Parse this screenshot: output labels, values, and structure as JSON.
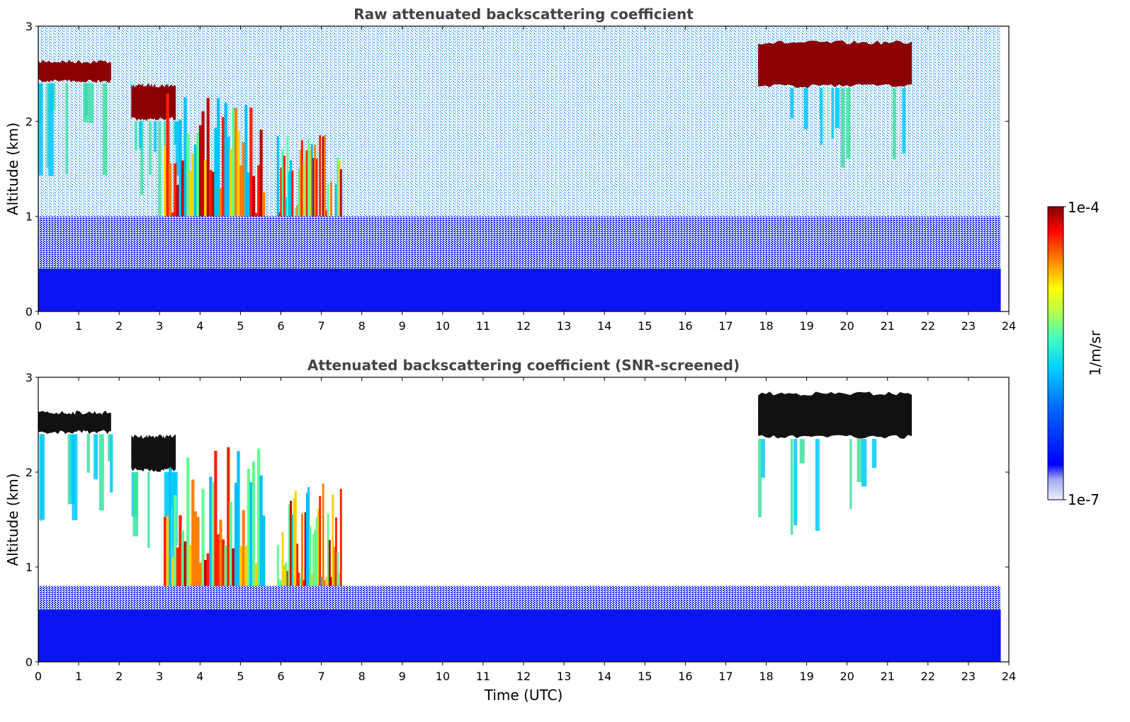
{
  "chart_data": [
    {
      "type": "heatmap",
      "title": "Raw attenuated backscattering coefficient",
      "xlabel": "",
      "ylabel": "Altitude (km)",
      "xlim": [
        0,
        24
      ],
      "ylim": [
        0,
        3
      ],
      "x_ticks": [
        "0",
        "1",
        "2",
        "3",
        "4",
        "5",
        "6",
        "7",
        "8",
        "9",
        "10",
        "11",
        "12",
        "13",
        "14",
        "15",
        "16",
        "17",
        "18",
        "19",
        "20",
        "21",
        "22",
        "23",
        "24"
      ],
      "y_ticks": [
        "0",
        "1",
        "2",
        "3"
      ],
      "data_end_hour": 23.8,
      "features": [
        {
          "kind": "cloud",
          "x": [
            0.0,
            1.8
          ],
          "y": [
            2.4,
            2.65
          ]
        },
        {
          "kind": "cloud",
          "x": [
            2.3,
            3.4
          ],
          "y": [
            2.0,
            2.4
          ]
        },
        {
          "kind": "precipitation",
          "x": [
            3.1,
            5.6
          ],
          "y": [
            0.0,
            2.3
          ]
        },
        {
          "kind": "precipitation",
          "x": [
            5.9,
            7.5
          ],
          "y": [
            0.0,
            1.9
          ]
        },
        {
          "kind": "cloud",
          "x": [
            17.8,
            21.6
          ],
          "y": [
            2.35,
            2.85
          ]
        },
        {
          "kind": "boundary-layer",
          "x": [
            0.0,
            23.8
          ],
          "y": [
            0.0,
            0.45
          ]
        }
      ]
    },
    {
      "type": "heatmap",
      "title": "Attenuated backscattering coefficient (SNR-screened)",
      "xlabel": "Time (UTC)",
      "ylabel": "Altitude (km)",
      "xlim": [
        0,
        24
      ],
      "ylim": [
        0,
        3
      ],
      "x_ticks": [
        "0",
        "1",
        "2",
        "3",
        "4",
        "5",
        "6",
        "7",
        "8",
        "9",
        "10",
        "11",
        "12",
        "13",
        "14",
        "15",
        "16",
        "17",
        "18",
        "19",
        "20",
        "21",
        "22",
        "23",
        "24"
      ],
      "y_ticks": [
        "0",
        "1",
        "2",
        "3"
      ],
      "data_end_hour": 23.8,
      "features": [
        {
          "kind": "cloud",
          "x": [
            0.0,
            1.8
          ],
          "y": [
            2.4,
            2.65
          ]
        },
        {
          "kind": "cloud",
          "x": [
            2.3,
            3.4
          ],
          "y": [
            2.0,
            2.4
          ]
        },
        {
          "kind": "precipitation",
          "x": [
            3.1,
            5.6
          ],
          "y": [
            0.0,
            2.3
          ]
        },
        {
          "kind": "precipitation",
          "x": [
            5.9,
            7.5
          ],
          "y": [
            0.0,
            1.9
          ]
        },
        {
          "kind": "cloud",
          "x": [
            17.8,
            21.6
          ],
          "y": [
            2.35,
            2.85
          ]
        },
        {
          "kind": "boundary-layer",
          "x": [
            0.0,
            23.8
          ],
          "y": [
            0.0,
            0.8
          ]
        }
      ]
    }
  ],
  "colorbar": {
    "label": "1/m/sr",
    "max_label": "1e-4",
    "min_label": "1e-7",
    "colormap": "jet",
    "stops": [
      "#eef0fb",
      "#0000ff",
      "#00a0ff",
      "#00ffff",
      "#80ff80",
      "#ffff00",
      "#ff8000",
      "#ff0000",
      "#800000"
    ]
  }
}
